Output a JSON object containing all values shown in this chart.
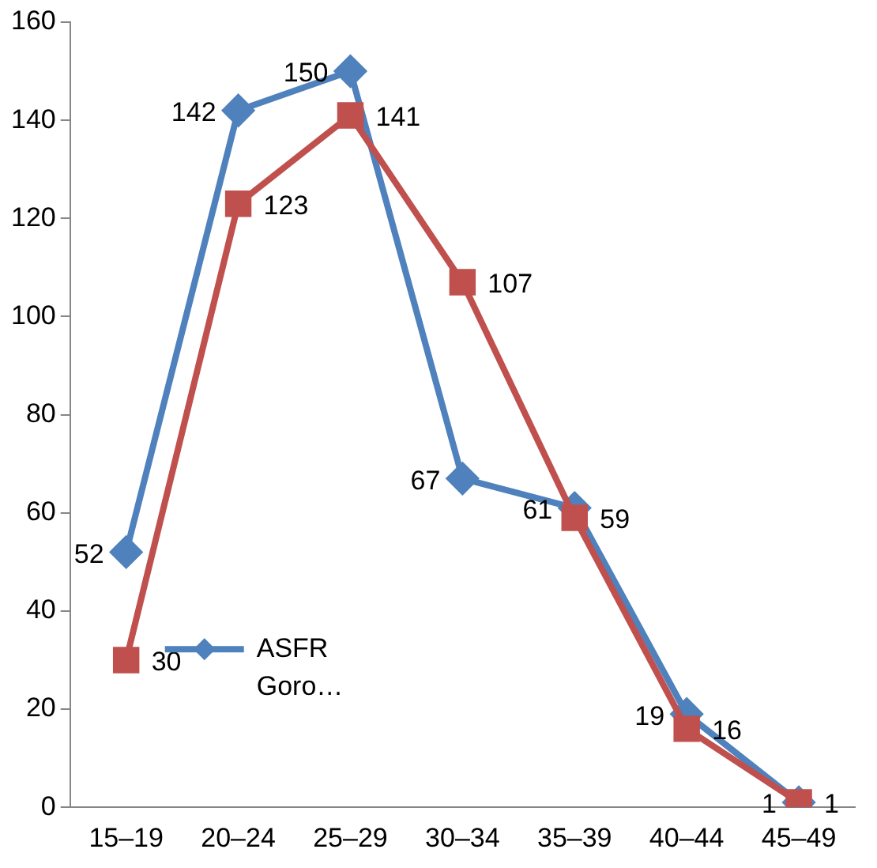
{
  "chart_data": {
    "type": "line",
    "categories": [
      "15–19",
      "20–24",
      "25–29",
      "30–34",
      "35–39",
      "40–44",
      "45–49"
    ],
    "series": [
      {
        "name": "ASFR Goro…",
        "color": "#4f81bd",
        "marker": "diamond",
        "values": [
          52,
          142,
          150,
          67,
          61,
          19,
          1
        ]
      },
      {
        "color": "#c0504d",
        "marker": "square",
        "values": [
          30,
          123,
          141,
          107,
          59,
          16,
          1
        ]
      }
    ],
    "ylim": [
      0,
      160
    ],
    "yticks": [
      0,
      20,
      40,
      60,
      80,
      100,
      120,
      140,
      160
    ],
    "grid": false,
    "data_labels": true,
    "legend": "bottom left"
  }
}
